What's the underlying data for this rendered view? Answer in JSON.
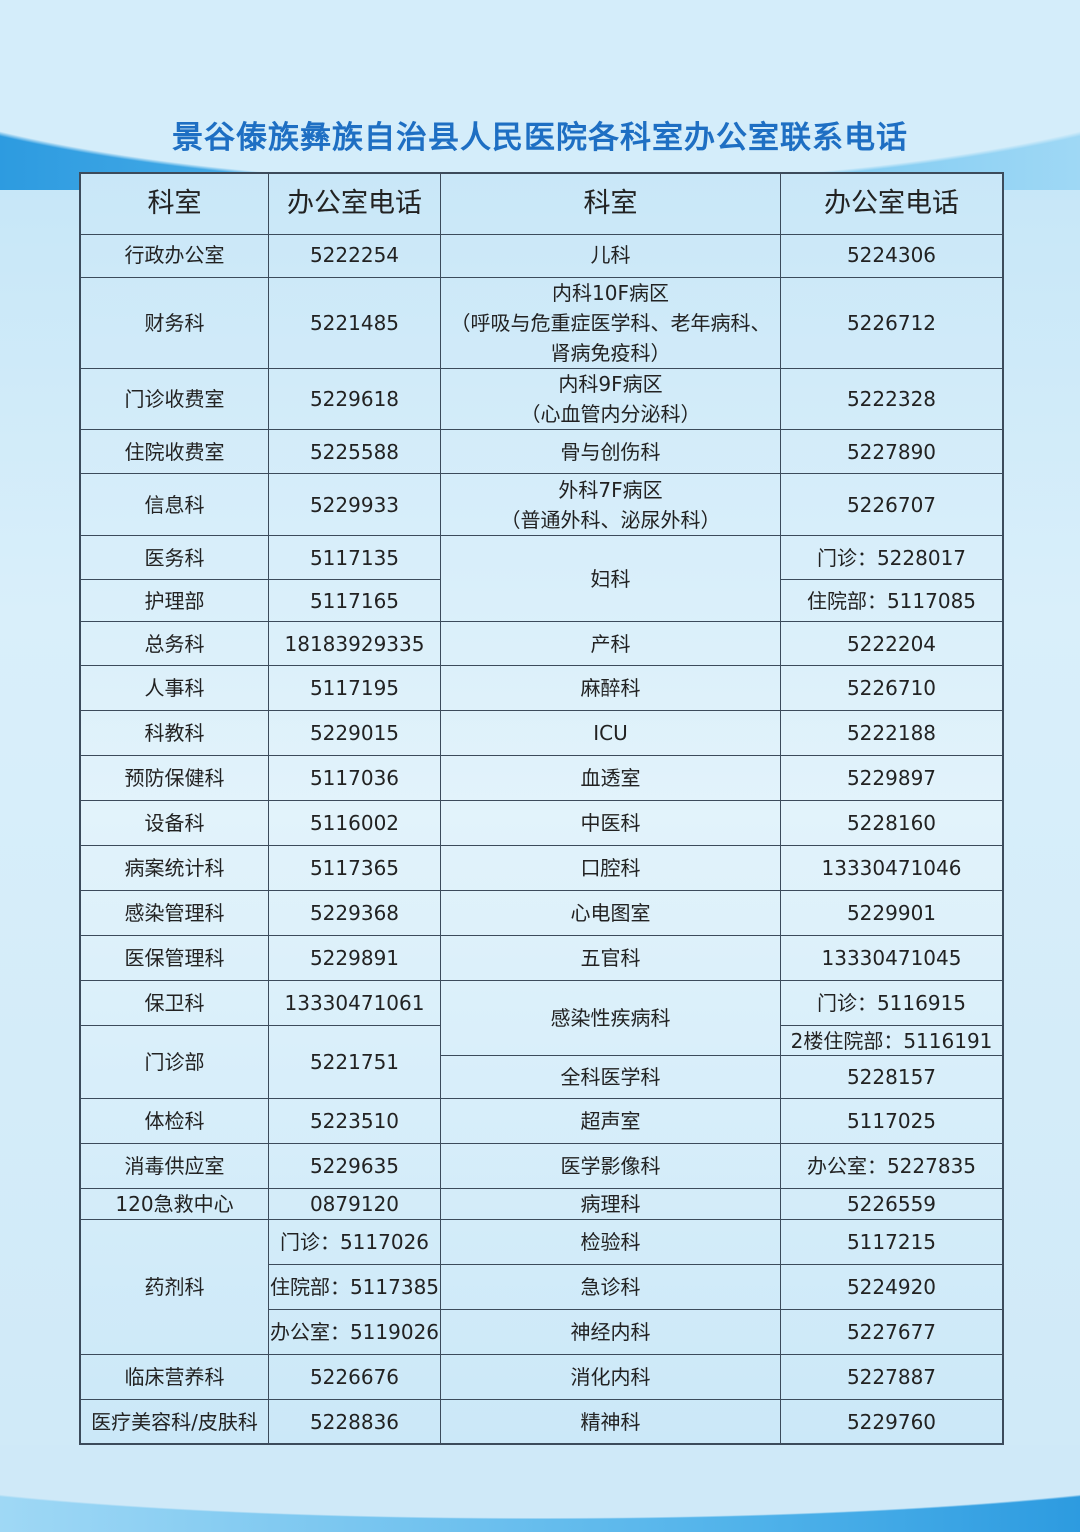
{
  "title": "景谷傣族彝族自治县人民医院各科室办公室联系电话",
  "headers": [
    "科室",
    "办公室电话",
    "科室",
    "办公室电话"
  ],
  "left": [
    {
      "dept": "行政办公室",
      "phones": [
        "5222254"
      ]
    },
    {
      "dept": "财务科",
      "phones": [
        "5221485"
      ]
    },
    {
      "dept": "门诊收费室",
      "phones": [
        "5229618"
      ]
    },
    {
      "dept": "住院收费室",
      "phones": [
        "5225588"
      ]
    },
    {
      "dept": "信息科",
      "phones": [
        "5229933"
      ]
    },
    {
      "dept": "医务科",
      "phones": [
        "5117135"
      ]
    },
    {
      "dept": "护理部",
      "phones": [
        "5117165"
      ]
    },
    {
      "dept": "总务科",
      "phones": [
        "18183929335"
      ]
    },
    {
      "dept": "人事科",
      "phones": [
        "5117195"
      ]
    },
    {
      "dept": "科教科",
      "phones": [
        "5229015"
      ]
    },
    {
      "dept": "预防保健科",
      "phones": [
        "5117036"
      ]
    },
    {
      "dept": "设备科",
      "phones": [
        "5116002"
      ]
    },
    {
      "dept": "病案统计科",
      "phones": [
        "5117365"
      ]
    },
    {
      "dept": "感染管理科",
      "phones": [
        "5229368"
      ]
    },
    {
      "dept": "医保管理科",
      "phones": [
        "5229891"
      ]
    },
    {
      "dept": "保卫科",
      "phones": [
        "13330471061"
      ]
    },
    {
      "dept": "门诊部",
      "phones": [
        "5221751"
      ]
    },
    {
      "dept": "体检科",
      "phones": [
        "5223510"
      ]
    },
    {
      "dept": "消毒供应室",
      "phones": [
        "5229635"
      ]
    },
    {
      "dept": "120急救中心",
      "phones": [
        "0879120"
      ]
    },
    {
      "dept": "药剂科",
      "phones": [
        "门诊：5117026",
        "住院部：5117385",
        "办公室：5119026"
      ]
    },
    {
      "dept": "临床营养科",
      "phones": [
        "5226676"
      ]
    },
    {
      "dept": "医疗美容科/皮肤科",
      "phones": [
        "5228836"
      ]
    }
  ],
  "right": [
    {
      "dept": "儿科",
      "phones": [
        "5224306"
      ]
    },
    {
      "dept": "内科10F病区\n（呼吸与危重症医学科、老年病科、\n肾病免疫科）",
      "phones": [
        "5226712"
      ]
    },
    {
      "dept": "内科9F病区\n（心血管内分泌科）",
      "phones": [
        "5222328"
      ]
    },
    {
      "dept": "骨与创伤科",
      "phones": [
        "5227890"
      ]
    },
    {
      "dept": "外科7F病区\n（普通外科、泌尿外科）",
      "phones": [
        "5226707"
      ]
    },
    {
      "dept": "妇科",
      "phones": [
        "门诊：5228017",
        "住院部：5117085"
      ]
    },
    {
      "dept": "产科",
      "phones": [
        "5222204"
      ]
    },
    {
      "dept": "麻醉科",
      "phones": [
        "5226710"
      ]
    },
    {
      "dept": "ICU",
      "phones": [
        "5222188"
      ]
    },
    {
      "dept": "血透室",
      "phones": [
        "5229897"
      ]
    },
    {
      "dept": "中医科",
      "phones": [
        "5228160"
      ]
    },
    {
      "dept": "口腔科",
      "phones": [
        "13330471046"
      ]
    },
    {
      "dept": "心电图室",
      "phones": [
        "5229901"
      ]
    },
    {
      "dept": "五官科",
      "phones": [
        "13330471045"
      ]
    },
    {
      "dept": "感染性疾病科",
      "phones": [
        "门诊：5116915",
        "2楼住院部：5116191"
      ]
    },
    {
      "dept": "全科医学科",
      "phones": [
        "5228157"
      ]
    },
    {
      "dept": "超声室",
      "phones": [
        "5117025"
      ]
    },
    {
      "dept": "医学影像科",
      "phones": [
        "办公室：5227835"
      ]
    },
    {
      "dept": "病理科",
      "phones": [
        "5226559"
      ]
    },
    {
      "dept": "检验科",
      "phones": [
        "5117215"
      ]
    },
    {
      "dept": "急诊科",
      "phones": [
        "5224920"
      ]
    },
    {
      "dept": "神经内科",
      "phones": [
        "5227677"
      ]
    },
    {
      "dept": "消化内科",
      "phones": [
        "5227887"
      ]
    },
    {
      "dept": "精神科",
      "phones": [
        "5229760"
      ]
    }
  ]
}
